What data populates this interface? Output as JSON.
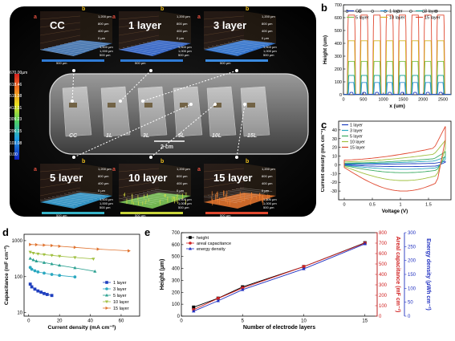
{
  "panel_letters": {
    "a": "a",
    "b": "b",
    "c": "c",
    "d": "d",
    "e": "e"
  },
  "panel_a": {
    "tiles": [
      {
        "label": "CC",
        "corner_a": "a",
        "corner_b": "b",
        "color": "#4a7fc0",
        "bar_color": "#2f7bd6"
      },
      {
        "label": "1 layer",
        "corner_a": "a",
        "corner_b": "b",
        "color": "#3a6fd8",
        "bar_color": "#2f7bd6"
      },
      {
        "label": "3 layer",
        "corner_a": "a",
        "corner_b": "b",
        "color": "#3a7fe0",
        "bar_color": "#3a8ae0"
      },
      {
        "label": "5 layer",
        "corner_a": "a",
        "corner_b": "b",
        "color": "#3aa3d8",
        "bar_color": "#36b3c8"
      },
      {
        "label": "10 layer",
        "corner_a": "a",
        "corner_b": "b",
        "color": "#7ec85a",
        "bar_color": "#c8d43a"
      },
      {
        "label": "15 layer",
        "corner_a": "a",
        "corner_b": "b",
        "color": "#e0732f",
        "bar_color": "#e0482f"
      }
    ],
    "tile_axis_ticks": {
      "z": [
        "1,200 µm",
        "800 µm",
        "400 µm",
        "0 µm"
      ],
      "y": [
        "1,500 µm",
        "1,000 µm",
        "500 µm"
      ],
      "x": [
        "500 µm",
        "2,000 µm",
        "1,500 µm"
      ]
    },
    "colorbar": [
      "670.00µm",
      "618.46",
      "515.38",
      "412.31",
      "309.23",
      "206.15",
      "103.08",
      "0.00"
    ],
    "photo_labels": [
      "CC",
      "1L",
      "3L",
      "5L",
      "10L",
      "15L"
    ],
    "scale_bar": "2 cm"
  },
  "chart_data": [
    {
      "panel": "b",
      "type": "line",
      "xlabel": "x (um)",
      "ylabel": "Height (um)",
      "xlim": [
        0,
        2700
      ],
      "ylim": [
        0,
        700
      ],
      "xticks": [
        0,
        500,
        1000,
        1500,
        2000,
        2500
      ],
      "yticks": [
        0,
        100,
        200,
        300,
        400,
        500,
        600,
        700
      ],
      "legend": "top",
      "series": [
        {
          "name": "CC",
          "color": "#1f3fbf",
          "peak": 18,
          "width": 60
        },
        {
          "name": "1 layer",
          "color": "#2f8fd0",
          "peak": 95,
          "width": 120
        },
        {
          "name": "3 layer",
          "color": "#2aa8a0",
          "peak": 150,
          "width": 140
        },
        {
          "name": "5 layer",
          "color": "#7cc04a",
          "peak": 260,
          "width": 150
        },
        {
          "name": "10 layer",
          "color": "#d4b420",
          "peak": 420,
          "width": 160
        },
        {
          "name": "15 layer",
          "color": "#e0482f",
          "peak": 620,
          "width": 170
        }
      ],
      "peak_positions": [
        200,
        520,
        840,
        1160,
        1480,
        1800,
        2120,
        2440
      ]
    },
    {
      "panel": "c",
      "type": "line",
      "xlabel": "Voltage (V)",
      "ylabel": "Current density (mA cm⁻²)",
      "xlim": [
        -0.1,
        1.9
      ],
      "ylim": [
        -40,
        50
      ],
      "xticks": [
        0.0,
        0.5,
        1.0,
        1.5
      ],
      "yticks": [
        -30,
        -20,
        -10,
        0,
        10,
        20,
        30,
        40
      ],
      "legend": "top-left",
      "series": [
        {
          "name": "1 layer",
          "color": "#1f3fbf",
          "top": 2,
          "bottom": -2,
          "end": 4
        },
        {
          "name": "3 layer",
          "color": "#2aa8c0",
          "top": 5,
          "bottom": -5,
          "end": 9
        },
        {
          "name": "5 layer",
          "color": "#3aaa60",
          "top": 8,
          "bottom": -9,
          "end": 15
        },
        {
          "name": "10 layer",
          "color": "#a0c040",
          "top": 14,
          "bottom": -18,
          "end": 28
        },
        {
          "name": "15 layer",
          "color": "#e0482f",
          "top": 22,
          "bottom": -30,
          "end": 44
        }
      ]
    },
    {
      "panel": "d",
      "type": "scatter",
      "xlabel": "Current density (mA cm⁻²)",
      "ylabel": "Capacitance (mF cm⁻²)",
      "xlim": [
        -3,
        72
      ],
      "ylim": [
        8,
        1500
      ],
      "yscale": "log",
      "xticks": [
        0,
        20,
        40,
        60
      ],
      "yticks": [
        10,
        100,
        1000
      ],
      "legend": "bottom-right",
      "series": [
        {
          "name": "1 layer",
          "color": "#1f3fbf",
          "marker": "square",
          "x": [
            1,
            2,
            4,
            6,
            8,
            10,
            12,
            15
          ],
          "y": [
            62,
            52,
            45,
            40,
            37,
            34,
            32,
            30
          ]
        },
        {
          "name": "3 layer",
          "color": "#2aa8c0",
          "marker": "circle",
          "x": [
            1,
            2,
            4,
            6,
            10,
            15,
            20,
            30
          ],
          "y": [
            180,
            160,
            145,
            135,
            125,
            115,
            108,
            98
          ]
        },
        {
          "name": "5 layer",
          "color": "#2aa090",
          "marker": "triangle-up",
          "x": [
            1,
            3,
            5,
            10,
            15,
            20,
            30,
            43
          ],
          "y": [
            320,
            290,
            270,
            245,
            225,
            205,
            175,
            140
          ]
        },
        {
          "name": "10 layer",
          "color": "#a0c040",
          "marker": "triangle-down",
          "x": [
            1,
            3,
            6,
            10,
            15,
            20,
            30,
            42
          ],
          "y": [
            480,
            450,
            430,
            410,
            390,
            370,
            340,
            310
          ]
        },
        {
          "name": "15 layer",
          "color": "#e0732f",
          "marker": "triangle-right",
          "x": [
            1,
            5,
            10,
            15,
            20,
            30,
            45,
            65
          ],
          "y": [
            780,
            770,
            750,
            730,
            700,
            650,
            580,
            520
          ]
        }
      ]
    },
    {
      "panel": "e",
      "type": "line",
      "xlabel": "Number of electrode layers",
      "ylabel": "Height (µm)",
      "ylabel_right1": "Areal capacitance (mF cm⁻²)",
      "ylabel_right2": "Energy density (µWh cm⁻²)",
      "xlim": [
        0,
        16
      ],
      "xticks": [
        0,
        5,
        10,
        15
      ],
      "ylim": [
        0,
        700
      ],
      "yticks": [
        0,
        100,
        200,
        300,
        400,
        500,
        600,
        700
      ],
      "ylim_right1": [
        0,
        800
      ],
      "yticks_right1": [
        0,
        100,
        200,
        300,
        400,
        500,
        600,
        700,
        800
      ],
      "ylim_right2": [
        0,
        300
      ],
      "yticks_right2": [
        0,
        50,
        100,
        150,
        200,
        250,
        300
      ],
      "legend": "top-left",
      "series": [
        {
          "name": "height",
          "color": "#000000",
          "marker": "square",
          "axis": "left",
          "x": [
            1,
            3,
            5,
            10,
            15
          ],
          "y": [
            75,
            150,
            245,
            415,
            615
          ]
        },
        {
          "name": "areal capacitance",
          "color": "#d02020",
          "marker": "circle",
          "axis": "right1",
          "x": [
            1,
            3,
            5,
            10,
            15
          ],
          "y": [
            62,
            170,
            270,
            475,
            700
          ]
        },
        {
          "name": "energy density",
          "color": "#2030c0",
          "marker": "triangle-up",
          "axis": "right2",
          "x": [
            1,
            3,
            5,
            10,
            15
          ],
          "y": [
            18,
            55,
            95,
            170,
            260
          ]
        }
      ]
    }
  ]
}
